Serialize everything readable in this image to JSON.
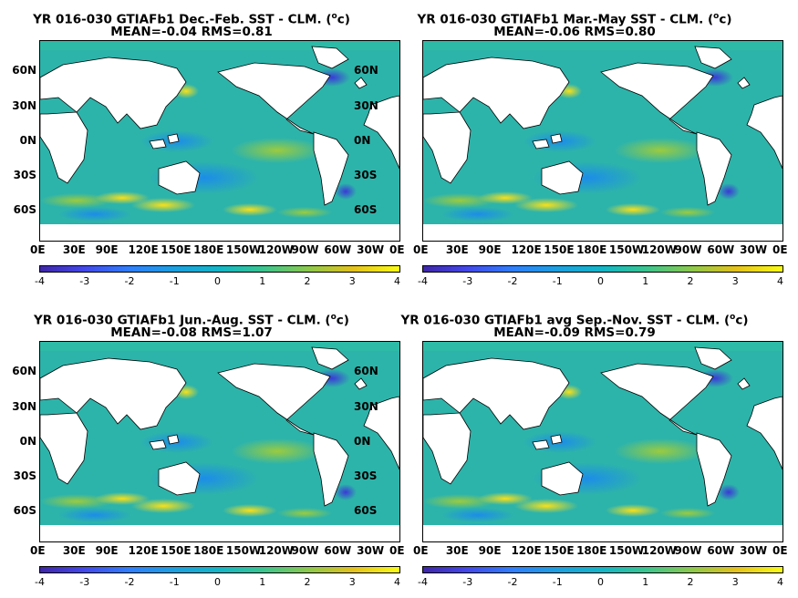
{
  "colormap": {
    "ticks": [
      "-4",
      "-3",
      "-2",
      "-1",
      "0",
      "1",
      "2",
      "3",
      "4"
    ],
    "colors": [
      "#3e26a8",
      "#4347e9",
      "#2f7ffc",
      "#1c9fe0",
      "#13b6c6",
      "#3ac58f",
      "#8ec94a",
      "#e4c11b",
      "#f9fb15"
    ]
  },
  "lat_labels": [
    "60N",
    "30N",
    "0N",
    "30S",
    "60S"
  ],
  "lon_labels": [
    "0E",
    "30E",
    "90E",
    "120E",
    "150E",
    "180E",
    "150W",
    "120W",
    "90W",
    "60W",
    "30W",
    "0E"
  ],
  "panels": [
    {
      "title_prefix": "YR 016-030 GTIAFb1  Dec.-Feb. SST - CLM. (",
      "title_unit": "o",
      "title_suffix": "c)",
      "stats": "MEAN=-0.04   RMS=0.81"
    },
    {
      "title_prefix": "YR 016-030 GTIAFb1 Mar.-May SST - CLM. (",
      "title_unit": "o",
      "title_suffix": "c)",
      "stats": "MEAN=-0.06   RMS=0.80"
    },
    {
      "title_prefix": "YR 016-030 GTIAFb1 Jun.-Aug. SST - CLM. (",
      "title_unit": "o",
      "title_suffix": "c)",
      "stats": "MEAN=-0.08   RMS=1.07"
    },
    {
      "title_prefix": "YR 016-030 GTIAFb1 avg Sep.-Nov. SST - CLM. (",
      "title_unit": "o",
      "title_suffix": "c)",
      "stats": "MEAN=-0.09   RMS=0.79"
    }
  ]
}
